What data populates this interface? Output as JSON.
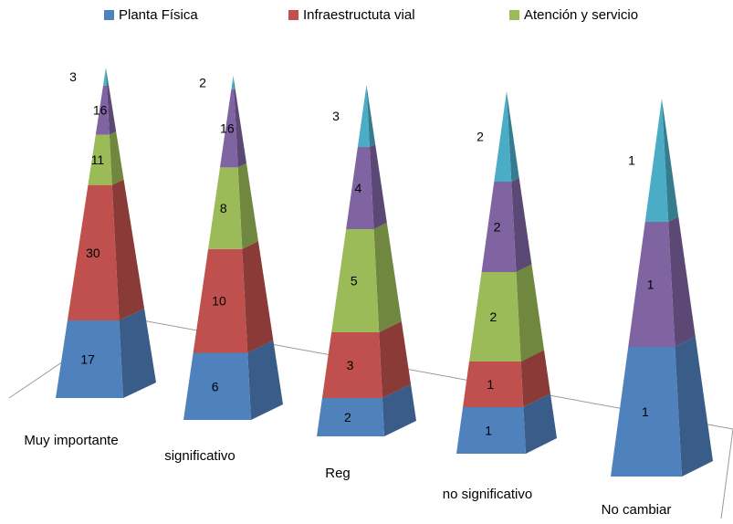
{
  "chart_data": {
    "type": "bar",
    "style": "3d-pyramid-stacked",
    "categories": [
      "Muy importante",
      "significativo",
      "Reg",
      "no significativo",
      "No cambiar"
    ],
    "series": [
      {
        "name": "Planta Física",
        "color": "#4F81BD",
        "values": [
          17,
          6,
          2,
          1,
          1
        ]
      },
      {
        "name": "Infraestructuta vial",
        "color": "#C0504D",
        "values": [
          30,
          10,
          3,
          1,
          0
        ]
      },
      {
        "name": "Atención y servicio",
        "color": "#9BBB59",
        "values": [
          11,
          8,
          5,
          2,
          null
        ]
      },
      {
        "name": "",
        "color": "#8064A2",
        "values": [
          16,
          16,
          4,
          2,
          1
        ]
      },
      {
        "name": "",
        "color": "#4BACC6",
        "values": [
          3,
          2,
          3,
          2,
          1
        ]
      }
    ],
    "legend_position": "top",
    "grid": false
  }
}
